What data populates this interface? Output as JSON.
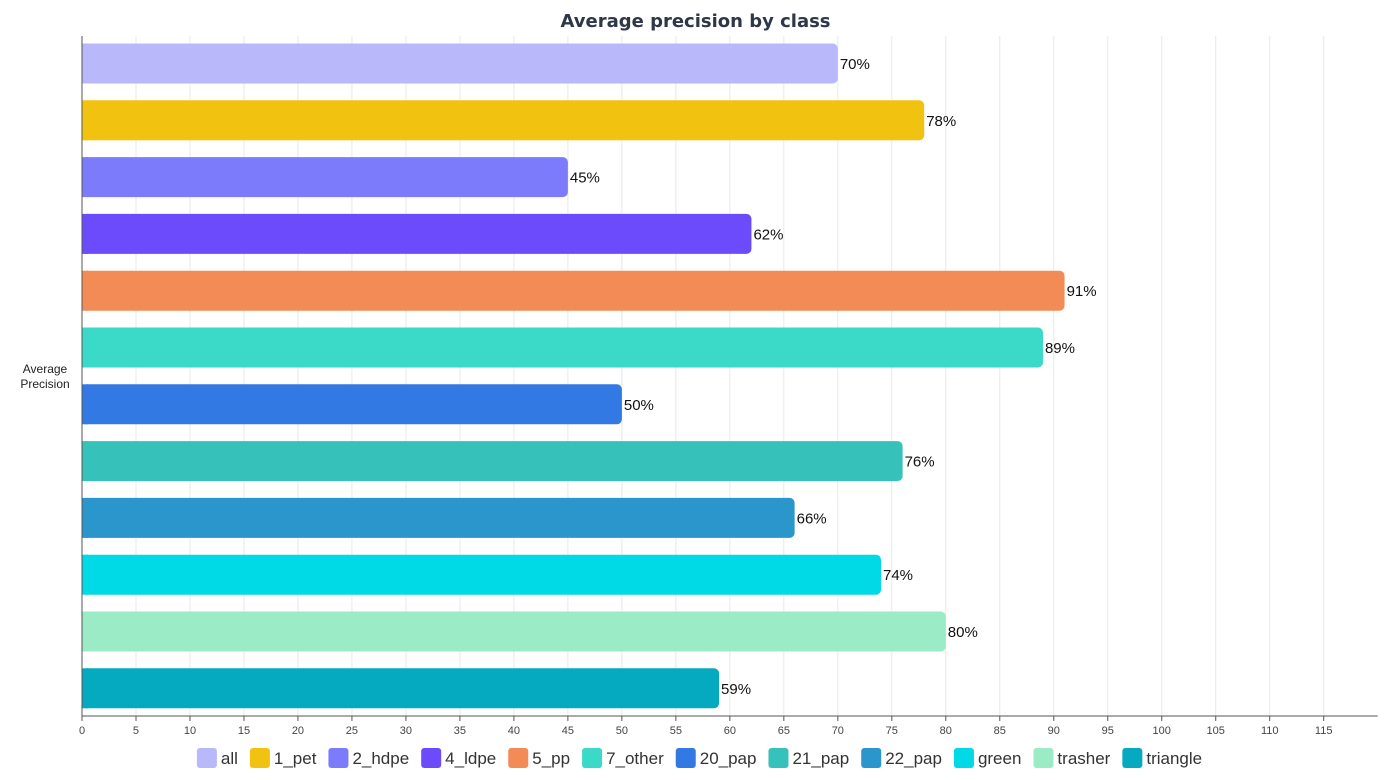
{
  "chart_data": {
    "type": "bar",
    "orientation": "horizontal",
    "title": "Average precision by class",
    "ylabel": "Average\nPrecision",
    "xlim": [
      0,
      120
    ],
    "xticks": [
      0,
      5,
      10,
      15,
      20,
      25,
      30,
      35,
      40,
      45,
      50,
      55,
      60,
      65,
      70,
      75,
      80,
      85,
      90,
      95,
      100,
      105,
      110,
      115
    ],
    "grid": true,
    "legend_position": "bottom",
    "series": [
      {
        "name": "all",
        "value": 70,
        "label": "70%",
        "color": "#b8b8fb"
      },
      {
        "name": "1_pet",
        "value": 78,
        "label": "78%",
        "color": "#f2c210"
      },
      {
        "name": "2_hdpe",
        "value": 45,
        "label": "45%",
        "color": "#7b7bfc"
      },
      {
        "name": "4_ldpe",
        "value": 62,
        "label": "62%",
        "color": "#6c4bfc"
      },
      {
        "name": "5_pp",
        "value": 91,
        "label": "91%",
        "color": "#f38b57"
      },
      {
        "name": "7_other",
        "value": 89,
        "label": "89%",
        "color": "#3ad9c8"
      },
      {
        "name": "20_pap",
        "value": 50,
        "label": "50%",
        "color": "#3379e3"
      },
      {
        "name": "21_pap",
        "value": 76,
        "label": "76%",
        "color": "#36c1bb"
      },
      {
        "name": "22_pap",
        "value": 66,
        "label": "66%",
        "color": "#2b96cc"
      },
      {
        "name": "green",
        "value": 74,
        "label": "74%",
        "color": "#00d9e6"
      },
      {
        "name": "trasher",
        "value": 80,
        "label": "80%",
        "color": "#9aebc6"
      },
      {
        "name": "triangle",
        "value": 59,
        "label": "59%",
        "color": "#05a9c0"
      }
    ]
  }
}
